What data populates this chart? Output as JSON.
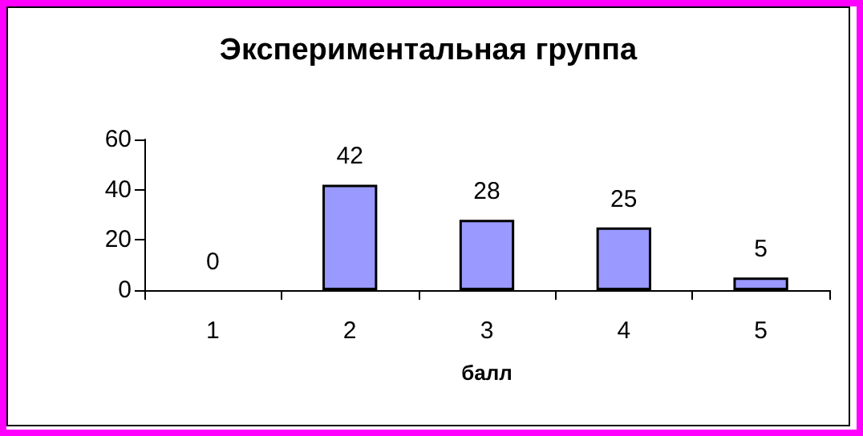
{
  "chart_data": {
    "type": "bar",
    "title": "Экспериментальная группа",
    "xlabel": "балл",
    "categories": [
      "1",
      "2",
      "3",
      "4",
      "5"
    ],
    "values": [
      0,
      42,
      28,
      25,
      5
    ],
    "color": "#9999ff",
    "ylim": [
      0,
      60
    ],
    "yticks": [
      0,
      20,
      40,
      60
    ],
    "grid": false,
    "data_labels": true
  }
}
